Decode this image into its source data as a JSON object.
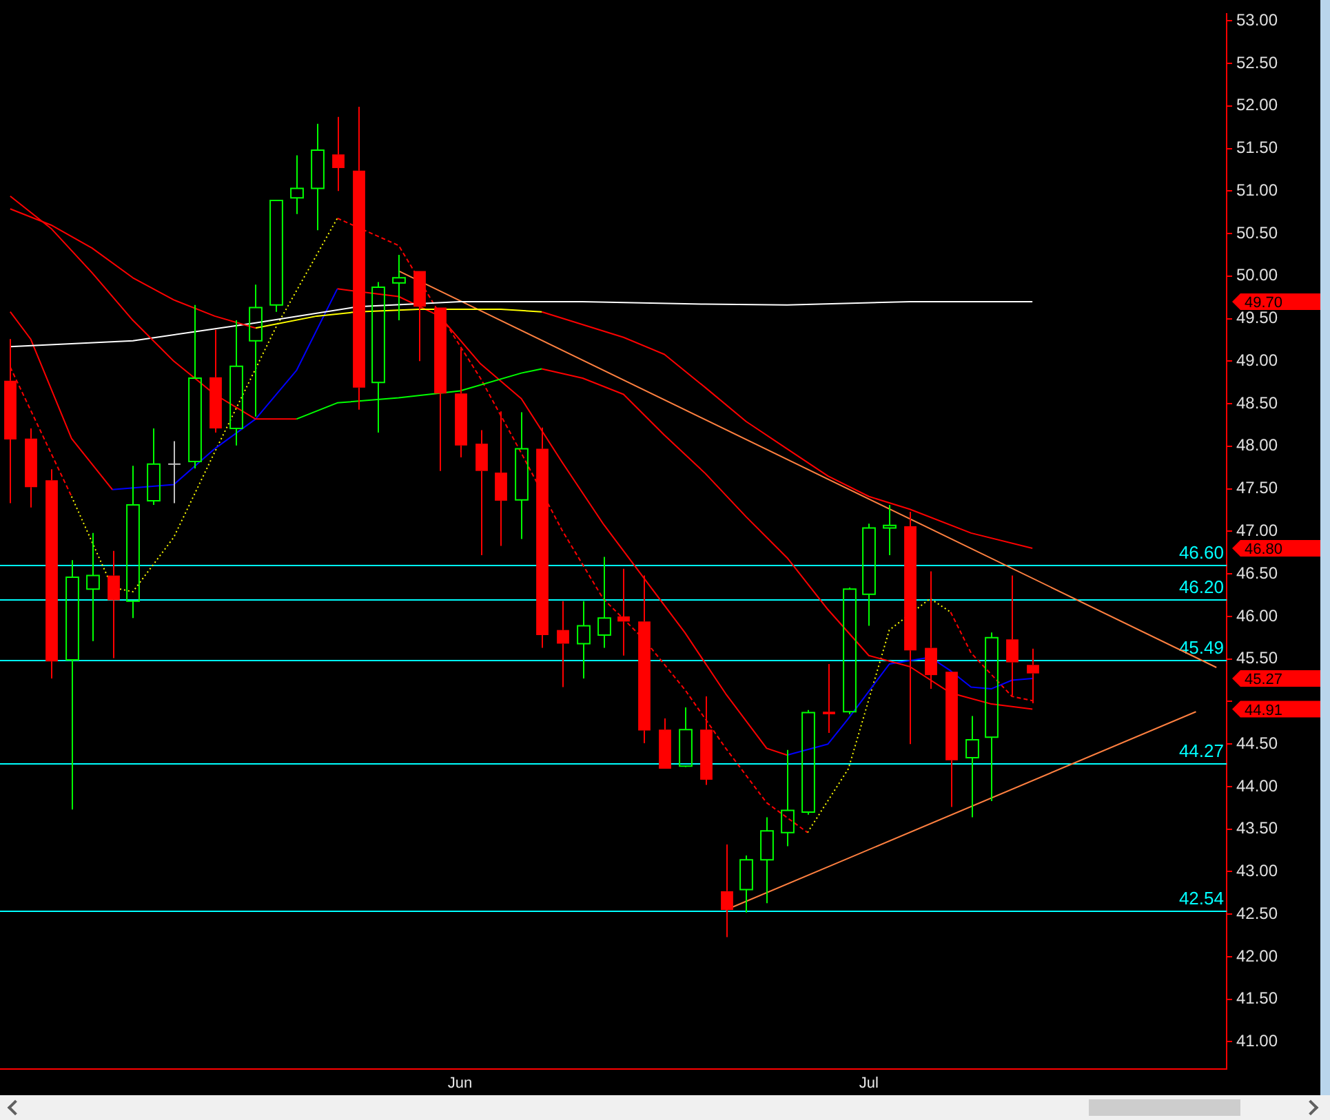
{
  "chart_data": {
    "type": "candlestick",
    "categories": [
      null,
      null,
      null,
      null,
      null,
      null,
      null,
      null,
      null,
      null,
      null,
      null,
      null,
      null,
      null,
      null,
      null,
      null,
      null,
      null,
      null,
      null,
      "Jun",
      null,
      null,
      null,
      null,
      null,
      null,
      null,
      null,
      null,
      null,
      null,
      null,
      null,
      null,
      null,
      null,
      null,
      null,
      null,
      "Jul",
      null,
      null,
      null,
      null,
      null,
      null,
      null,
      null,
      null,
      null,
      null,
      null,
      null,
      null,
      null,
      null,
      null
    ],
    "ohlc": [
      [
        48.77,
        49.26,
        47.33,
        48.08
      ],
      [
        48.09,
        48.21,
        47.28,
        47.52
      ],
      [
        47.6,
        47.73,
        45.27,
        45.47
      ],
      [
        45.49,
        46.66,
        43.73,
        46.46
      ],
      [
        46.32,
        46.98,
        45.71,
        46.48
      ],
      [
        46.48,
        46.77,
        45.51,
        46.19
      ],
      [
        46.18,
        47.77,
        45.98,
        47.31
      ],
      [
        47.36,
        48.21,
        47.31,
        47.79
      ],
      [
        47.79,
        48.06,
        47.33,
        47.79
      ],
      [
        47.82,
        49.66,
        47.74,
        48.8
      ],
      [
        48.81,
        49.37,
        48.16,
        48.21
      ],
      [
        48.21,
        49.48,
        48.01,
        48.94
      ],
      [
        49.24,
        49.9,
        48.35,
        49.63
      ],
      [
        49.66,
        50.89,
        49.58,
        50.89
      ],
      [
        50.92,
        51.42,
        50.73,
        51.03
      ],
      [
        51.03,
        51.79,
        50.54,
        51.48
      ],
      [
        51.43,
        51.87,
        51.0,
        51.27
      ],
      [
        51.24,
        51.99,
        48.43,
        48.69
      ],
      [
        48.75,
        49.93,
        48.16,
        49.87
      ],
      [
        49.92,
        50.25,
        49.48,
        49.98
      ],
      [
        50.06,
        50.06,
        49.0,
        49.64
      ],
      [
        49.63,
        49.63,
        47.71,
        48.62
      ],
      [
        48.62,
        49.15,
        47.87,
        48.01
      ],
      [
        48.03,
        48.19,
        46.72,
        47.71
      ],
      [
        47.69,
        48.41,
        46.83,
        47.36
      ],
      [
        47.37,
        48.4,
        46.91,
        47.97
      ],
      [
        47.97,
        48.22,
        45.63,
        45.78
      ],
      [
        45.84,
        46.18,
        45.17,
        45.68
      ],
      [
        45.68,
        46.18,
        45.27,
        45.89
      ],
      [
        45.78,
        46.7,
        45.63,
        45.98
      ],
      [
        46.0,
        46.56,
        45.54,
        45.94
      ],
      [
        45.94,
        46.48,
        44.51,
        44.66
      ],
      [
        44.67,
        44.8,
        44.21,
        44.21
      ],
      [
        44.24,
        44.93,
        44.23,
        44.67
      ],
      [
        44.67,
        45.06,
        44.02,
        44.08
      ],
      [
        42.77,
        43.32,
        42.23,
        42.55
      ],
      [
        42.79,
        43.19,
        42.52,
        43.14
      ],
      [
        43.14,
        43.64,
        42.63,
        43.48
      ],
      [
        43.46,
        44.43,
        43.3,
        43.72
      ],
      [
        43.7,
        44.9,
        43.67,
        44.87
      ],
      [
        44.88,
        45.44,
        44.63,
        44.85
      ],
      [
        44.88,
        46.34,
        44.85,
        46.32
      ],
      [
        46.26,
        47.09,
        45.89,
        47.04
      ],
      [
        47.04,
        47.31,
        46.72,
        47.07
      ],
      [
        47.06,
        47.23,
        44.5,
        45.6
      ],
      [
        45.63,
        46.53,
        45.15,
        45.31
      ],
      [
        45.35,
        45.35,
        43.76,
        44.31
      ],
      [
        44.34,
        44.83,
        43.64,
        44.55
      ],
      [
        44.58,
        45.81,
        43.83,
        45.75
      ],
      [
        45.73,
        46.48,
        45.07,
        45.46
      ],
      [
        45.43,
        45.62,
        44.98,
        45.33
      ],
      null,
      null,
      null,
      null,
      null,
      null,
      null,
      null,
      null
    ],
    "colors": [
      "#ff0000",
      "#ff0000",
      "#ff0000",
      "#00ff00",
      "#00ff00",
      "#ff0000",
      "#00ff00",
      "#00ff00",
      "#c0c0c0",
      "#00ff00",
      "#ff0000",
      "#00ff00",
      "#00ff00",
      "#00ff00",
      "#00ff00",
      "#00ff00",
      "#ff0000",
      "#ff0000",
      "#00ff00",
      "#00ff00",
      "#ff0000",
      "#ff0000",
      "#ff0000",
      "#ff0000",
      "#ff0000",
      "#00ff00",
      "#ff0000",
      "#ff0000",
      "#00ff00",
      "#00ff00",
      "#ff0000",
      "#ff0000",
      "#ff0000",
      "#00ff00",
      "#ff0000",
      "#ff0000",
      "#00ff00",
      "#00ff00",
      "#00ff00",
      "#00ff00",
      "#ff0000",
      "#00ff00",
      "#00ff00",
      "#00ff00",
      "#ff0000",
      "#ff0000",
      "#ff0000",
      "#00ff00",
      "#00ff00",
      "#ff0000",
      "#ff0000",
      null,
      null,
      null,
      null,
      null,
      null,
      null,
      null,
      null
    ],
    "series": [
      {
        "type": "line",
        "color": "#ff0000",
        "values": [
          50.94,
          null,
          50.56,
          null,
          50.04,
          null,
          49.48,
          null,
          49.0,
          null,
          48.61,
          null,
          48.32,
          null,
          48.32,
          null,
          null,
          null,
          null,
          null,
          null,
          null,
          null,
          null,
          null,
          null,
          null,
          null,
          null,
          null,
          null,
          null,
          null,
          null,
          null,
          null,
          null,
          null,
          null,
          null,
          null,
          null,
          null,
          null,
          null,
          null,
          null,
          null,
          null,
          null,
          null,
          null,
          null,
          null,
          null,
          null,
          null,
          null,
          null,
          null
        ]
      },
      {
        "type": "line",
        "color": "#00ff00",
        "values": [
          null,
          null,
          null,
          null,
          null,
          null,
          null,
          null,
          null,
          null,
          null,
          null,
          null,
          null,
          48.32,
          null,
          48.51,
          null,
          null,
          48.57,
          null,
          null,
          48.65,
          null,
          null,
          48.86,
          48.91,
          null,
          null,
          null,
          null,
          null,
          null,
          null,
          null,
          null,
          null,
          null,
          null,
          null,
          null,
          null,
          null,
          null,
          null,
          null,
          null,
          null,
          null,
          null,
          null,
          null,
          null,
          null,
          null,
          null,
          null,
          null,
          null,
          null
        ]
      },
      {
        "type": "line",
        "color": "#ff0000",
        "values": [
          null,
          null,
          null,
          null,
          null,
          null,
          null,
          null,
          null,
          null,
          null,
          null,
          null,
          null,
          null,
          null,
          null,
          null,
          null,
          null,
          null,
          null,
          null,
          null,
          null,
          null,
          48.91,
          null,
          48.8,
          null,
          48.61,
          null,
          48.13,
          null,
          47.68,
          null,
          47.17,
          null,
          46.69,
          null,
          46.08,
          null,
          45.54,
          null,
          45.41,
          null,
          45.1,
          null,
          44.97,
          null,
          44.91,
          null,
          null,
          null,
          null,
          null,
          null,
          null,
          null,
          null
        ]
      },
      {
        "type": "line",
        "color": "#ff0000",
        "values": [
          50.79,
          null,
          50.6,
          null,
          50.33,
          null,
          49.98,
          null,
          49.72,
          null,
          49.53,
          null,
          49.39,
          null,
          null,
          null,
          null,
          null,
          null,
          null,
          null,
          null,
          null,
          null,
          null,
          null,
          null,
          null,
          null,
          null,
          null,
          null,
          null,
          null,
          null,
          null,
          null,
          null,
          null,
          null,
          null,
          null,
          null,
          null,
          null,
          null,
          null,
          null,
          null,
          null,
          null,
          null,
          null,
          null,
          null,
          null,
          null,
          null,
          null,
          null
        ]
      },
      {
        "type": "line",
        "color": "#ffff00",
        "values": [
          null,
          null,
          null,
          null,
          null,
          null,
          null,
          null,
          null,
          null,
          null,
          null,
          49.39,
          null,
          null,
          49.53,
          null,
          49.58,
          null,
          null,
          49.61,
          null,
          null,
          null,
          49.61,
          null,
          49.58,
          null,
          null,
          null,
          null,
          null,
          null,
          null,
          null,
          null,
          null,
          null,
          null,
          null,
          null,
          null,
          null,
          null,
          null,
          null,
          null,
          null,
          null,
          null,
          null,
          null,
          null,
          null,
          null,
          null,
          null,
          null,
          null,
          null
        ]
      },
      {
        "type": "line",
        "color": "#ff0000",
        "values": [
          null,
          null,
          null,
          null,
          null,
          null,
          null,
          null,
          null,
          null,
          null,
          null,
          null,
          null,
          null,
          null,
          null,
          null,
          null,
          null,
          null,
          null,
          null,
          null,
          null,
          null,
          49.58,
          null,
          null,
          null,
          49.28,
          null,
          49.08,
          null,
          48.69,
          null,
          48.29,
          null,
          47.97,
          null,
          47.65,
          null,
          47.41,
          null,
          47.26,
          null,
          null,
          46.98,
          null,
          null,
          46.8,
          null,
          null,
          null,
          null,
          null,
          null,
          null,
          null,
          null
        ]
      },
      {
        "type": "line",
        "color": "#ffffff",
        "values": [
          49.17,
          null,
          null,
          null,
          null,
          null,
          49.24,
          null,
          null,
          null,
          null,
          null,
          49.45,
          null,
          null,
          null,
          null,
          49.64,
          null,
          null,
          null,
          null,
          49.7,
          null,
          null,
          null,
          null,
          null,
          49.7,
          null,
          null,
          null,
          null,
          null,
          49.67,
          null,
          null,
          null,
          49.66,
          null,
          null,
          null,
          null,
          null,
          49.7,
          null,
          null,
          null,
          null,
          null,
          49.7,
          null,
          null,
          null,
          null,
          null,
          null,
          null,
          null,
          null
        ]
      },
      {
        "type": "line",
        "color": "#ff0000",
        "values": [
          49.58,
          49.26,
          null,
          48.09,
          null,
          47.49,
          null,
          null,
          null,
          null,
          null,
          null,
          null,
          null,
          null,
          null,
          null,
          null,
          null,
          null,
          null,
          null,
          null,
          null,
          null,
          null,
          null,
          null,
          null,
          null,
          null,
          null,
          null,
          null,
          null,
          null,
          null,
          null,
          null,
          null,
          null,
          null,
          null,
          null,
          null,
          null,
          null,
          null,
          null,
          null,
          null,
          null,
          null,
          null,
          null,
          null,
          null,
          null,
          null,
          null
        ]
      },
      {
        "type": "line",
        "color": "#0000ff",
        "values": [
          null,
          null,
          null,
          null,
          null,
          47.49,
          null,
          null,
          47.55,
          null,
          47.97,
          null,
          48.32,
          null,
          48.89,
          null,
          49.85,
          null,
          null,
          null,
          null,
          null,
          null,
          null,
          null,
          null,
          null,
          null,
          null,
          null,
          null,
          null,
          null,
          null,
          null,
          null,
          null,
          null,
          null,
          null,
          null,
          null,
          null,
          null,
          null,
          null,
          null,
          null,
          null,
          null,
          null,
          null,
          null,
          null,
          null,
          null,
          null,
          null,
          null,
          null
        ]
      },
      {
        "type": "line",
        "color": "#ff0000",
        "values": [
          null,
          null,
          null,
          null,
          null,
          null,
          null,
          null,
          null,
          null,
          null,
          null,
          null,
          null,
          null,
          null,
          49.85,
          null,
          null,
          49.76,
          null,
          49.53,
          null,
          48.97,
          null,
          48.56,
          null,
          47.81,
          null,
          47.09,
          null,
          46.45,
          null,
          45.81,
          null,
          45.09,
          null,
          44.45,
          44.37,
          null,
          null,
          null,
          null,
          null,
          null,
          null,
          null,
          null,
          null,
          null,
          null,
          null,
          null,
          null,
          null,
          null,
          null,
          null,
          null,
          null
        ]
      },
      {
        "type": "line",
        "color": "#0000ff",
        "values": [
          null,
          null,
          null,
          null,
          null,
          null,
          null,
          null,
          null,
          null,
          null,
          null,
          null,
          null,
          null,
          null,
          null,
          null,
          null,
          null,
          null,
          null,
          null,
          null,
          null,
          null,
          null,
          null,
          null,
          null,
          null,
          null,
          null,
          null,
          null,
          null,
          null,
          null,
          44.37,
          null,
          44.5,
          44.8,
          null,
          45.44,
          null,
          45.52,
          45.36,
          45.17,
          45.15,
          45.25,
          45.27,
          null,
          null,
          null,
          null,
          null,
          null,
          null,
          null,
          null
        ]
      },
      {
        "type": "line",
        "color": "#ff0000",
        "line_style": "dashed",
        "values": [
          48.93,
          null,
          null,
          47.41,
          null,
          null,
          null,
          null,
          null,
          null,
          null,
          null,
          null,
          null,
          null,
          null,
          null,
          null,
          null,
          null,
          null,
          null,
          null,
          null,
          null,
          null,
          null,
          null,
          null,
          null,
          null,
          null,
          null,
          null,
          null,
          null,
          null,
          null,
          null,
          null,
          null,
          null,
          null,
          null,
          null,
          null,
          null,
          null,
          null,
          null,
          null,
          null,
          null,
          null,
          null,
          null,
          null,
          null,
          null,
          null
        ]
      },
      {
        "type": "line",
        "color": "#ffff00",
        "line_style": "dotted",
        "values": [
          null,
          null,
          null,
          47.41,
          null,
          46.34,
          46.29,
          null,
          46.93,
          null,
          47.93,
          null,
          null,
          49.4,
          null,
          null,
          50.68,
          null,
          null,
          null,
          null,
          null,
          null,
          null,
          null,
          null,
          null,
          null,
          null,
          null,
          null,
          null,
          null,
          null,
          null,
          null,
          null,
          null,
          null,
          null,
          null,
          null,
          null,
          null,
          null,
          null,
          null,
          null,
          null,
          null,
          null,
          null,
          null,
          null,
          null,
          null,
          null,
          null,
          null,
          null
        ]
      },
      {
        "type": "line",
        "color": "#ff0000",
        "line_style": "dashed",
        "values": [
          null,
          null,
          null,
          null,
          null,
          null,
          null,
          null,
          null,
          null,
          null,
          null,
          null,
          null,
          null,
          null,
          50.68,
          null,
          null,
          50.36,
          null,
          49.56,
          null,
          48.8,
          null,
          47.92,
          null,
          47.01,
          null,
          46.21,
          null,
          45.73,
          null,
          45.14,
          null,
          44.45,
          null,
          43.81,
          null,
          43.46,
          null,
          null,
          null,
          null,
          null,
          null,
          null,
          null,
          null,
          null,
          null,
          null,
          null,
          null,
          null,
          null,
          null,
          null,
          null,
          null
        ]
      },
      {
        "type": "line",
        "color": "#ffff00",
        "line_style": "dotted",
        "values": [
          null,
          null,
          null,
          null,
          null,
          null,
          null,
          null,
          null,
          null,
          null,
          null,
          null,
          null,
          null,
          null,
          null,
          null,
          null,
          null,
          null,
          null,
          null,
          null,
          null,
          null,
          null,
          null,
          null,
          null,
          null,
          null,
          null,
          null,
          null,
          null,
          null,
          null,
          null,
          43.46,
          null,
          44.21,
          null,
          45.84,
          null,
          46.21,
          46.05,
          null,
          null,
          null,
          null,
          null,
          null,
          null,
          null,
          null,
          null,
          null,
          null,
          null
        ]
      },
      {
        "type": "line",
        "color": "#ff0000",
        "line_style": "dashed",
        "values": [
          null,
          null,
          null,
          null,
          null,
          null,
          null,
          null,
          null,
          null,
          null,
          null,
          null,
          null,
          null,
          null,
          null,
          null,
          null,
          null,
          null,
          null,
          null,
          null,
          null,
          null,
          null,
          null,
          null,
          null,
          null,
          null,
          null,
          null,
          null,
          null,
          null,
          null,
          null,
          null,
          null,
          null,
          null,
          null,
          null,
          null,
          46.05,
          45.57,
          null,
          45.06,
          45.01,
          null,
          null,
          null,
          null,
          null,
          null,
          null,
          null,
          null
        ]
      },
      {
        "type": "line",
        "color": "#ff8040",
        "values": [
          null,
          null,
          null,
          null,
          null,
          null,
          null,
          null,
          null,
          null,
          null,
          null,
          null,
          null,
          null,
          null,
          null,
          null,
          null,
          50.06,
          null,
          null,
          null,
          null,
          null,
          null,
          null,
          null,
          null,
          null,
          null,
          null,
          null,
          null,
          null,
          null,
          null,
          null,
          null,
          null,
          null,
          null,
          null,
          null,
          null,
          null,
          null,
          null,
          null,
          null,
          null,
          null,
          null,
          null,
          null,
          null,
          null,
          null,
          null,
          45.4
        ]
      },
      {
        "type": "line",
        "color": "#ff8040",
        "values": [
          null,
          null,
          null,
          null,
          null,
          null,
          null,
          null,
          null,
          null,
          null,
          null,
          null,
          null,
          null,
          null,
          null,
          null,
          null,
          null,
          null,
          null,
          null,
          null,
          null,
          null,
          null,
          null,
          null,
          null,
          null,
          null,
          null,
          null,
          null,
          42.55,
          null,
          null,
          null,
          null,
          null,
          null,
          null,
          null,
          null,
          null,
          null,
          null,
          null,
          null,
          null,
          null,
          null,
          null,
          null,
          null,
          null,
          null,
          44.88,
          null
        ]
      }
    ],
    "ref_lines": [
      {
        "axis": "y",
        "value": 46.6,
        "label": "46.60",
        "color": "#00ffff"
      },
      {
        "axis": "y",
        "value": 46.2,
        "label": "46.20",
        "color": "#00ffff"
      },
      {
        "axis": "y",
        "value": 45.49,
        "label": "45.49",
        "color": "#00ffff"
      },
      {
        "axis": "y",
        "value": 44.27,
        "label": "44.27",
        "color": "#00ffff"
      },
      {
        "axis": "y",
        "value": 42.54,
        "label": "42.54",
        "color": "#00ffff"
      }
    ],
    "annotations": [
      "49.70",
      "46.80",
      "45.27",
      "44.91"
    ],
    "ylim": [
      40.68,
      53.08
    ],
    "yticks": [
      {
        "value": 41,
        "label": "41.00"
      },
      {
        "value": 41.5,
        "label": "41.50"
      },
      {
        "value": 42,
        "label": "42.00"
      },
      {
        "value": 42.5,
        "label": "42.50"
      },
      {
        "value": 43,
        "label": "43.00"
      },
      {
        "value": 43.5,
        "label": "43.50"
      },
      {
        "value": 44,
        "label": "44.00"
      },
      {
        "value": 44.5,
        "label": "44.50"
      },
      {
        "value": 45,
        "label": null
      },
      {
        "value": 45.5,
        "label": "45.50"
      },
      {
        "value": 46,
        "label": "46.00"
      },
      {
        "value": 46.5,
        "label": "46.50"
      },
      {
        "value": 47,
        "label": "47.00"
      },
      {
        "value": 47.5,
        "label": "47.50"
      },
      {
        "value": 48,
        "label": "48.00"
      },
      {
        "value": 48.5,
        "label": "48.50"
      },
      {
        "value": 49,
        "label": "49.00"
      },
      {
        "value": 49.5,
        "label": "49.50"
      },
      {
        "value": 50,
        "label": "50.00"
      },
      {
        "value": 50.5,
        "label": "50.50"
      },
      {
        "value": 51,
        "label": "51.00"
      },
      {
        "value": 51.5,
        "label": "51.50"
      },
      {
        "value": 52,
        "label": "52.00"
      },
      {
        "value": 52.5,
        "label": "52.50"
      },
      {
        "value": 53,
        "label": "53.00"
      }
    ],
    "grid": false,
    "legend": false
  }
}
